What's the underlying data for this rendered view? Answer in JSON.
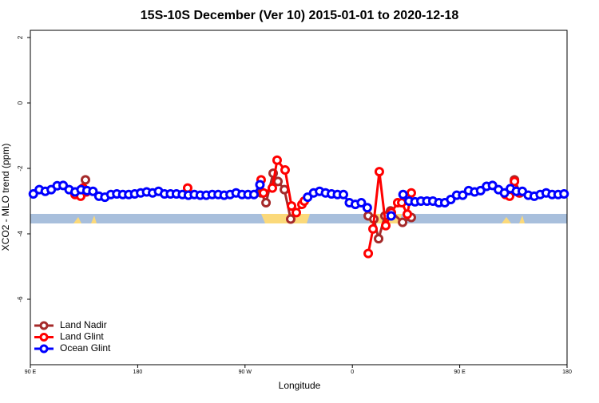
{
  "chart_data": {
    "type": "line",
    "title": "15S-10S December (Ver 10)   2015-01-01 to 2020-12-18",
    "xlabel": "Longitude",
    "ylabel": "XCO2 - MLO trend (ppm)",
    "xlim": [
      90,
      540
    ],
    "ylim": [
      -8,
      2.22
    ],
    "xticks": [
      {
        "value": 90,
        "label": "90 E"
      },
      180,
      {
        "value": 270,
        "label": "90 W"
      },
      {
        "value": 360,
        "label": "0"
      },
      {
        "value": 450,
        "label": "90 E"
      },
      {
        "value": 540,
        "label": "180"
      }
    ],
    "yticks": [
      -6,
      -4,
      -2,
      0,
      2
    ],
    "legend": "bottomleft",
    "series": [
      {
        "name": "Land Nadir",
        "color": "#a52a2a",
        "x": [
          136.2,
          null,
          283.5,
          287.6,
          293.6,
          297.6,
          303.0,
          308.3,
          null,
          373.3,
          378.0,
          382.0,
          387.3,
          392.0,
          402.1,
          409.4,
          null,
          495.9,
          500.5
        ],
        "values": [
          -2.35,
          null,
          -2.75,
          -3.05,
          -2.15,
          -2.4,
          -2.65,
          -3.55,
          null,
          -3.45,
          -3.55,
          -4.15,
          -3.45,
          -3.3,
          -3.65,
          -3.5,
          null,
          -2.35,
          -2.75
        ]
      },
      {
        "name": "Land Glint",
        "color": "#ff0000",
        "x": [
          127.5,
          132.2,
          134.2,
          136.9,
          null,
          221.9,
          null,
          283.5,
          285.5,
          292.9,
          296.9,
          303.6,
          309.0,
          313.0,
          317.7,
          319.7,
          null,
          373.3,
          377.3,
          382.6,
          388.0,
          392.7,
          398.0,
          401.4,
          406.1,
          409.4,
          null,
          488.4,
          491.8,
          495.9,
          499.8
        ],
        "values": [
          -2.8,
          -2.85,
          -2.6,
          -2.72,
          null,
          -2.6,
          null,
          -2.35,
          -2.75,
          -2.6,
          -1.75,
          -2.05,
          -3.15,
          -3.35,
          -3.1,
          -3.0,
          null,
          -4.6,
          -3.85,
          -2.1,
          -3.75,
          -3.35,
          -3.05,
          -3.05,
          -3.4,
          -2.75,
          null,
          -2.8,
          -2.85,
          -2.4,
          -2.75
        ]
      },
      {
        "name": "Ocean Glint",
        "color": "#0000ff",
        "x": [
          92.5,
          97.5,
          102.5,
          107.5,
          112.5,
          117.5,
          122.5,
          127.5,
          132.5,
          137.5,
          142.5,
          147.5,
          152.5,
          157.5,
          162.5,
          167.5,
          172.5,
          177.5,
          182.5,
          187.5,
          192.5,
          197.5,
          202.5,
          207.5,
          212.5,
          217.5,
          222.5,
          227.5,
          232.5,
          237.5,
          242.5,
          247.5,
          252.5,
          257.5,
          262.5,
          267.5,
          272.5,
          277.5,
          282.5,
          null,
          322.5,
          327.5,
          332.5,
          337.5,
          342.5,
          347.5,
          352.5,
          357.5,
          362.5,
          367.5,
          372.5,
          null,
          392.5,
          null,
          402.5,
          407.5,
          412.5,
          417.5,
          422.5,
          427.5,
          432.5,
          437.5,
          442.5,
          447.5,
          452.5,
          457.5,
          462.5,
          467.5,
          472.5,
          477.5,
          482.5,
          487.5,
          492.5,
          497.5,
          502.5,
          507.5,
          512.5,
          517.5,
          522.5,
          527.5,
          532.5,
          537.5
        ],
        "values": [
          -2.78,
          -2.65,
          -2.7,
          -2.65,
          -2.53,
          -2.52,
          -2.65,
          -2.72,
          -2.65,
          -2.68,
          -2.7,
          -2.85,
          -2.88,
          -2.8,
          -2.78,
          -2.8,
          -2.8,
          -2.78,
          -2.75,
          -2.72,
          -2.75,
          -2.7,
          -2.78,
          -2.78,
          -2.78,
          -2.8,
          -2.82,
          -2.8,
          -2.82,
          -2.82,
          -2.8,
          -2.8,
          -2.82,
          -2.8,
          -2.75,
          -2.8,
          -2.8,
          -2.8,
          -2.5,
          null,
          -2.88,
          -2.75,
          -2.7,
          -2.75,
          -2.78,
          -2.8,
          -2.8,
          -3.05,
          -3.1,
          -3.05,
          -3.2,
          null,
          -3.45,
          null,
          -2.8,
          -3.0,
          -3.02,
          -3.0,
          -3.0,
          -3.0,
          -3.05,
          -3.05,
          -2.95,
          -2.82,
          -2.82,
          -2.68,
          -2.72,
          -2.68,
          -2.55,
          -2.52,
          -2.65,
          -2.75,
          -2.62,
          -2.7,
          -2.7,
          -2.82,
          -2.85,
          -2.8,
          -2.75,
          -2.8,
          -2.8,
          -2.78
        ]
      }
    ]
  }
}
